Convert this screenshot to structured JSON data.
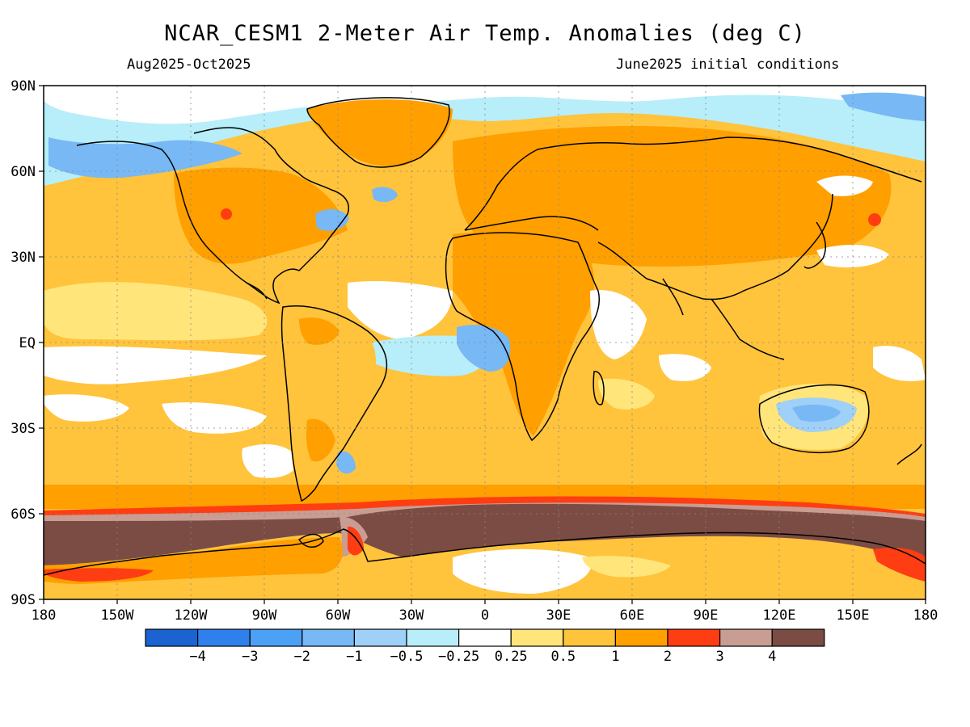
{
  "header": {
    "title": "NCAR_CESM1 2-Meter Air Temp. Anomalies (deg C)",
    "period": "Aug2025-Oct2025",
    "init": "June2025 initial conditions"
  },
  "axes": {
    "lat_labels": [
      "90N",
      "60N",
      "30N",
      "EQ",
      "30S",
      "60S",
      "90S"
    ],
    "lon_labels": [
      "180",
      "150W",
      "120W",
      "90W",
      "60W",
      "30W",
      "0",
      "30E",
      "60E",
      "90E",
      "120E",
      "150E",
      "180"
    ]
  },
  "colorbar": {
    "colors": [
      "#1a63d0",
      "#2f80ed",
      "#4ca0f5",
      "#77b8f5",
      "#9fd0f8",
      "#b7eefa",
      "#ffffff",
      "#ffe57a",
      "#ffc33c",
      "#ff9f00",
      "#ff3d12",
      "#c99d92",
      "#7b4c43"
    ],
    "labels": [
      "-4",
      "-3",
      "-2",
      "-1",
      "-0.5",
      "-0.25",
      "0.25",
      "0.5",
      "1",
      "2",
      "3",
      "4"
    ]
  }
}
